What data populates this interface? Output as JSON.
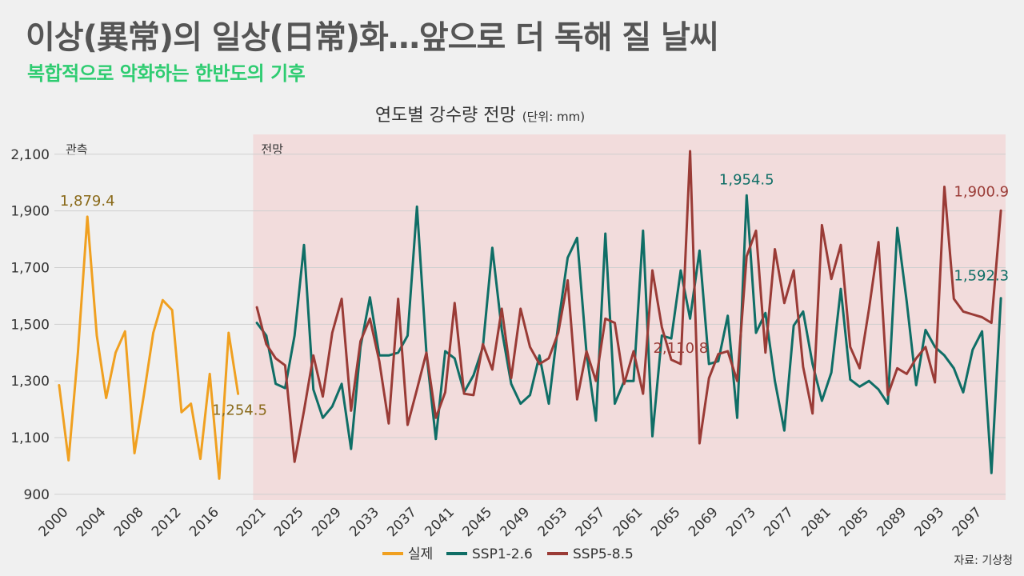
{
  "headline": "이상(異常)의 일상(日常)화…앞으로 더 독해 질 날씨",
  "subheadline": "복합적으로 악화하는 한반도의 기후",
  "source": "자료: 기상청",
  "colors": {
    "observed": "#f0a020",
    "ssp126": "#0f6e66",
    "ssp585": "#9a3b36",
    "forecast_bg": "#f2dcdc",
    "accent_green": "#2ecc71",
    "ann_observed": "#8a6a1a",
    "ann_ssp126": "#0f6e66",
    "ann_ssp585": "#9a3b36"
  },
  "chart_data": {
    "type": "line",
    "title": "연도별 강수량 전망",
    "unit_label": "(단위: mm)",
    "region_labels": {
      "observed": "관측",
      "forecast": "전망"
    },
    "ylim": [
      880,
      2170
    ],
    "yticks": [
      900,
      1100,
      1300,
      1500,
      1700,
      1900,
      2100
    ],
    "ytick_labels": [
      "900",
      "1,100",
      "1,300",
      "1,500",
      "1,700",
      "1,900",
      "2,100"
    ],
    "xlim": [
      1999.5,
      2100.5
    ],
    "forecast_start": 2020,
    "xticks": [
      2000,
      2004,
      2008,
      2012,
      2016,
      2021,
      2025,
      2029,
      2033,
      2037,
      2041,
      2045,
      2049,
      2053,
      2057,
      2061,
      2065,
      2069,
      2073,
      2077,
      2081,
      2085,
      2089,
      2093,
      2097
    ],
    "xtick_labels": [
      "2000",
      "2004",
      "2008",
      "2012",
      "2016",
      "2021",
      "2025",
      "2029",
      "2033",
      "2037",
      "2041",
      "2045",
      "2049",
      "2053",
      "2057",
      "2061",
      "2065",
      "2069",
      "2073",
      "2077",
      "2081",
      "2085",
      "2089",
      "2093",
      "2097"
    ],
    "series": [
      {
        "name": "실제",
        "key": "observed",
        "x_start": 2000,
        "values": [
          1285,
          1020,
          1400,
          1879.4,
          1460,
          1240,
          1400,
          1475,
          1045,
          1250,
          1470,
          1585,
          1550,
          1190,
          1220,
          1025,
          1325,
          955,
          1470,
          1254.5
        ]
      },
      {
        "name": "SSP1-2.6",
        "key": "ssp126",
        "x_start": 2021,
        "values": [
          1505,
          1460,
          1290,
          1275,
          1460,
          1780,
          1270,
          1170,
          1210,
          1290,
          1060,
          1420,
          1595,
          1390,
          1390,
          1400,
          1460,
          1915,
          1400,
          1095,
          1405,
          1380,
          1260,
          1320,
          1420,
          1770,
          1480,
          1290,
          1220,
          1250,
          1390,
          1220,
          1500,
          1735,
          1805,
          1400,
          1160,
          1820,
          1220,
          1300,
          1300,
          1830,
          1105,
          1460,
          1450,
          1690,
          1520,
          1760,
          1360,
          1370,
          1530,
          1170,
          1954.5,
          1470,
          1540,
          1300,
          1125,
          1495,
          1545,
          1360,
          1230,
          1330,
          1625,
          1305,
          1280,
          1300,
          1270,
          1220,
          1840,
          1580,
          1285,
          1480,
          1420,
          1390,
          1345,
          1260,
          1410,
          1475,
          975,
          1592.3
        ]
      },
      {
        "name": "SSP5-8.5",
        "key": "ssp585",
        "x_start": 2021,
        "values": [
          1560,
          1430,
          1380,
          1355,
          1015,
          1195,
          1390,
          1245,
          1470,
          1590,
          1195,
          1440,
          1520,
          1370,
          1150,
          1590,
          1145,
          1270,
          1400,
          1170,
          1260,
          1575,
          1255,
          1250,
          1430,
          1340,
          1555,
          1310,
          1555,
          1420,
          1360,
          1380,
          1470,
          1655,
          1235,
          1405,
          1300,
          1520,
          1505,
          1290,
          1405,
          1255,
          1690,
          1490,
          1375,
          1360,
          2110.8,
          1080,
          1310,
          1395,
          1405,
          1300,
          1740,
          1830,
          1400,
          1765,
          1575,
          1690,
          1350,
          1185,
          1850,
          1660,
          1780,
          1420,
          1345,
          1555,
          1790,
          1250,
          1345,
          1325,
          1380,
          1420,
          1295,
          1985,
          1590,
          1545,
          1535,
          1525,
          1505,
          1900.9
        ]
      }
    ],
    "annotations": [
      {
        "series": "observed",
        "x": 2003,
        "text": "1,879.4"
      },
      {
        "series": "observed",
        "x": 2019,
        "text": "1,254.5"
      },
      {
        "series": "ssp585",
        "x": 2066,
        "text": "2,110.8"
      },
      {
        "series": "ssp126",
        "x": 2073,
        "text": "1,954.5"
      },
      {
        "series": "ssp585",
        "x": 2100,
        "text": "1,900.9"
      },
      {
        "series": "ssp126",
        "x": 2100,
        "text": "1,592.3"
      }
    ]
  }
}
